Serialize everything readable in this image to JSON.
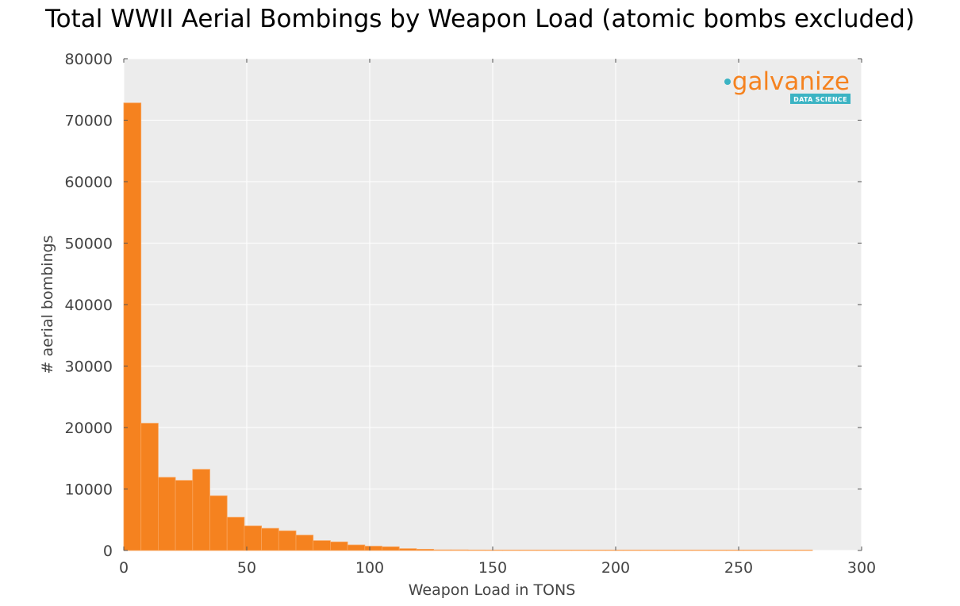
{
  "chart_data": {
    "type": "bar",
    "title": "Total WWII Aerial Bombings by Weapon Load (atomic bombs excluded)",
    "xlabel": "Weapon Load in TONS",
    "ylabel": "# aerial bombings",
    "xlim": [
      0,
      300
    ],
    "ylim": [
      0,
      80000
    ],
    "xticks": [
      0,
      50,
      100,
      150,
      200,
      250,
      300
    ],
    "yticks": [
      0,
      10000,
      20000,
      30000,
      40000,
      50000,
      60000,
      70000,
      80000
    ],
    "grid": true,
    "bin_width": 7,
    "bins_start": [
      0,
      7,
      14,
      21,
      28,
      35,
      42,
      49,
      56,
      63,
      70,
      77,
      84,
      91,
      98,
      105,
      112,
      119,
      126,
      133,
      140,
      147,
      154,
      161,
      168,
      175,
      182,
      189,
      196,
      203,
      210,
      217,
      224,
      231,
      238,
      245,
      252,
      259,
      266,
      273
    ],
    "values": [
      72800,
      20700,
      11900,
      11400,
      13200,
      8900,
      5400,
      4000,
      3600,
      3200,
      2500,
      1600,
      1400,
      900,
      700,
      600,
      300,
      200,
      100,
      100,
      80,
      60,
      50,
      40,
      30,
      30,
      20,
      20,
      20,
      15,
      15,
      10,
      10,
      10,
      10,
      10,
      10,
      10,
      10,
      10
    ],
    "bar_color": "#f5821f",
    "background_color": "#ececec"
  },
  "logo": {
    "word": "galvanize",
    "subtitle": "DATA SCIENCE",
    "word_color": "#f5821f",
    "badge_color": "#3bb3c3"
  }
}
